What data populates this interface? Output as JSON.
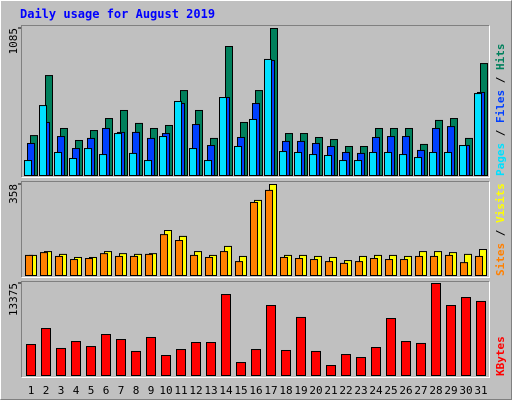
{
  "title": "Daily usage for August 2019",
  "chart_data": [
    {
      "type": "bar",
      "legend_separator": " / ",
      "series": [
        {
          "name": "Pages",
          "color": "#00e0ff",
          "values": [
            117,
            520,
            176,
            132,
            205,
            161,
            315,
            169,
            117,
            293,
            550,
            205,
            117,
            579,
            220,
            418,
            858,
            183,
            176,
            161,
            154,
            117,
            117,
            176,
            176,
            161,
            139,
            176,
            176,
            227,
            608
          ]
        },
        {
          "name": "Files",
          "color": "#0040ff",
          "values": [
            242,
            396,
            293,
            205,
            279,
            352,
            323,
            323,
            279,
            315,
            535,
            381,
            227,
            579,
            286,
            535,
            850,
            257,
            257,
            242,
            220,
            176,
            169,
            286,
            293,
            293,
            191,
            352,
            366,
            227,
            616
          ]
        },
        {
          "name": "Hits",
          "color": "#00805c",
          "values": [
            300,
            740,
            352,
            264,
            337,
            425,
            484,
            389,
            352,
            374,
            630,
            484,
            279,
            953,
            396,
            630,
            1085,
            315,
            315,
            286,
            271,
            220,
            220,
            352,
            352,
            352,
            235,
            411,
            425,
            279,
            828
          ]
        }
      ],
      "ylim": [
        0,
        1085
      ],
      "yticks": [
        1085
      ]
    },
    {
      "type": "bar",
      "legend_separator": " / ",
      "series": [
        {
          "name": "Sites",
          "color": "#ff8000",
          "values": [
            82,
            93,
            78,
            66,
            70,
            89,
            78,
            78,
            86,
            163,
            140,
            82,
            74,
            97,
            58,
            288,
            335,
            74,
            70,
            66,
            58,
            51,
            58,
            70,
            66,
            66,
            78,
            78,
            82,
            54,
            78
          ]
        },
        {
          "name": "Visits",
          "color": "#ffff00",
          "values": [
            82,
            97,
            86,
            74,
            74,
            97,
            89,
            86,
            89,
            179,
            156,
            97,
            82,
            117,
            78,
            296,
            358,
            82,
            82,
            78,
            74,
            62,
            78,
            82,
            82,
            78,
            97,
            97,
            93,
            86,
            105
          ]
        }
      ],
      "ylim": [
        0,
        358
      ],
      "yticks": [
        358
      ]
    },
    {
      "type": "bar",
      "series": [
        {
          "name": "KBytes",
          "color": "#ff0000",
          "values": [
            4600,
            6900,
            4030,
            5030,
            4310,
            6040,
            5320,
            3600,
            5610,
            3020,
            3880,
            4890,
            4890,
            11790,
            2010,
            3880,
            10210,
            3740,
            8490,
            3600,
            1580,
            3160,
            2730,
            4170,
            8340,
            5030,
            4750,
            13375,
            10210,
            11360,
            10790
          ]
        }
      ],
      "ylim": [
        0,
        13375
      ],
      "yticks": [
        13375
      ],
      "categories": [
        "1",
        "2",
        "3",
        "4",
        "5",
        "6",
        "7",
        "8",
        "9",
        "10",
        "11",
        "12",
        "13",
        "14",
        "15",
        "16",
        "17",
        "18",
        "19",
        "20",
        "21",
        "22",
        "23",
        "24",
        "25",
        "26",
        "27",
        "28",
        "29",
        "30",
        "31"
      ],
      "category_colors": [
        "#000000",
        "#000000",
        "#008040",
        "#008040",
        "#000000",
        "#000000",
        "#000000",
        "#000000",
        "#000000",
        "#008040",
        "#008040",
        "#000000",
        "#000000",
        "#000000",
        "#000000",
        "#000000",
        "#008040",
        "#008040",
        "#000000",
        "#000000",
        "#000000",
        "#000000",
        "#000000",
        "#008040",
        "#008040",
        "#000000",
        "#000000",
        "#000000",
        "#000000",
        "#000000",
        "#008040"
      ]
    }
  ]
}
